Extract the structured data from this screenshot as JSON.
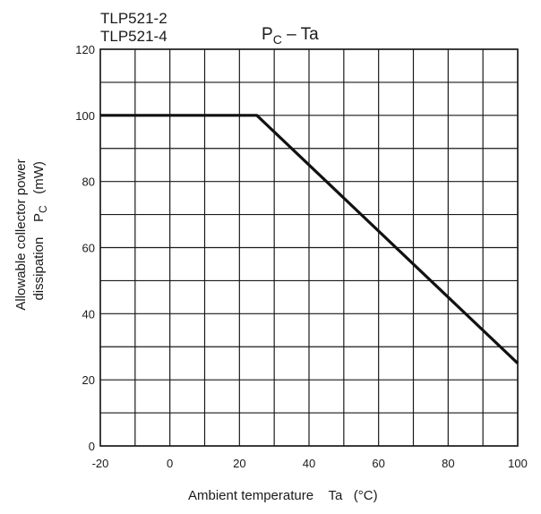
{
  "chart_data": {
    "type": "line",
    "part_numbers": [
      "TLP521-2",
      "TLP521-4"
    ],
    "title_main": "P",
    "title_sub": "C",
    "title_rest": " – Ta",
    "xlabel": "Ambient temperature    Ta   (°C)",
    "ylabel_line1": "Allowable collector power",
    "ylabel_line2_a": "dissipation    P",
    "ylabel_line2_sub": "C",
    "ylabel_line2_b": "   (mW)",
    "xlim": [
      -20,
      100
    ],
    "ylim": [
      0,
      120
    ],
    "x_ticks": [
      -20,
      0,
      20,
      40,
      60,
      80,
      100
    ],
    "x_tick_labels": [
      "-20",
      "0",
      "20",
      "40",
      "60",
      "80",
      "100"
    ],
    "y_ticks": [
      0,
      20,
      40,
      60,
      80,
      100,
      120
    ],
    "y_tick_labels": [
      "0",
      "20",
      "40",
      "60",
      "80",
      "100",
      "120"
    ],
    "grid": true,
    "grid_x_step": 10,
    "grid_y_step": 10,
    "series": [
      {
        "x": [
          -20,
          25,
          100
        ],
        "y": [
          100,
          100,
          25
        ]
      }
    ],
    "colors": {
      "line": "#111111",
      "grid": "#1a1a1a",
      "text": "#1a1a1a"
    }
  }
}
